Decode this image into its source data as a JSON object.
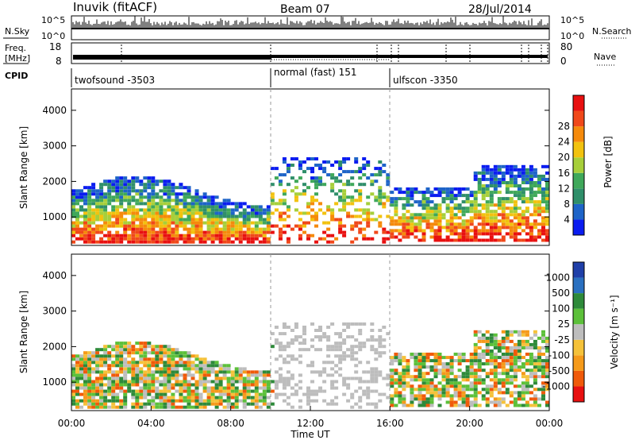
{
  "header": {
    "station": "Inuvik (fitACF)",
    "beam": "Beam 07",
    "date": "28/Jul/2014"
  },
  "chart_data": [
    {
      "type": "line",
      "panel": "noise",
      "left_label": "N.Sky",
      "right_label": "N.Search",
      "left_ticks": [
        "10^5",
        "10^0"
      ],
      "right_ticks": [
        "10^5",
        "10^0"
      ]
    },
    {
      "type": "line",
      "panel": "frequency",
      "left_label_line1": "Freq.",
      "left_label_line2": "[MHz]",
      "right_label": "Nave",
      "left_ticks": [
        18,
        8
      ],
      "right_ticks": [
        80,
        0
      ]
    },
    {
      "type": "table",
      "panel": "cpid",
      "label": "CPID",
      "segments": [
        {
          "name": "twofsound -3503",
          "start_hour": 0
        },
        {
          "name": "normal (fast) 151",
          "start_hour": 10
        },
        {
          "name": "ulfscon -3350",
          "start_hour": 16
        }
      ]
    },
    {
      "type": "heatmap",
      "panel": "power",
      "ylabel": "Slant Range [km]",
      "yticks": [
        1000,
        2000,
        3000,
        4000
      ],
      "ylim": [
        200,
        4600
      ],
      "xlim": [
        0,
        24
      ],
      "colorbar": {
        "label": "Power [dB]",
        "ticks": [
          4,
          8,
          12,
          16,
          20,
          24,
          28
        ],
        "range": [
          0,
          32
        ],
        "colors": [
          "#0a1cf0",
          "#1e64c8",
          "#2f8f6a",
          "#3fa85a",
          "#a7cf3a",
          "#f2c20f",
          "#f58a0c",
          "#f0481a",
          "#e81010"
        ]
      }
    },
    {
      "type": "heatmap",
      "panel": "velocity",
      "ylabel": "Slant Range [km]",
      "xlabel": "Time UT",
      "yticks": [
        1000,
        2000,
        3000,
        4000
      ],
      "ylim": [
        200,
        4600
      ],
      "xlim": [
        0,
        24
      ],
      "xticks": [
        "00:00",
        "04:00",
        "08:00",
        "12:00",
        "16:00",
        "20:00",
        "00:00"
      ],
      "colorbar": {
        "label": "Velocity [m s⁻¹]",
        "ticks": [
          "1000",
          "500",
          "100",
          "25",
          "-25",
          "-100",
          "-500",
          "-1000"
        ],
        "colors": [
          "#1f3fa8",
          "#2a70c0",
          "#2e8a3a",
          "#5cc03a",
          "#bdbdbd",
          "#f5c23a",
          "#f59a1a",
          "#f05a0a",
          "#e81010"
        ]
      }
    }
  ]
}
